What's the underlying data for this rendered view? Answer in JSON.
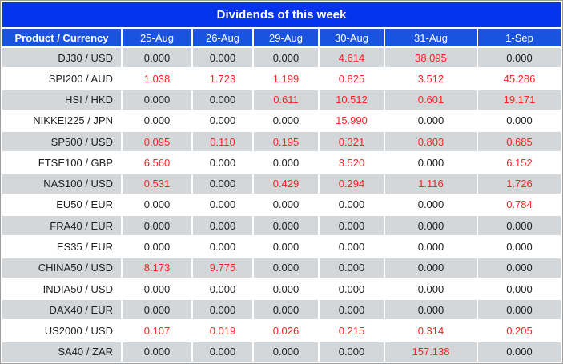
{
  "title": "Dividends of this week",
  "chart_data": {
    "type": "table",
    "columns": [
      "Product / Currency",
      "25-Aug",
      "26-Aug",
      "29-Aug",
      "30-Aug",
      "31-Aug",
      "1-Sep"
    ],
    "rows": [
      {
        "product": "DJ30 / USD",
        "values": [
          "0.000",
          "0.000",
          "0.000",
          "4.614",
          "38.095",
          "0.000"
        ]
      },
      {
        "product": "SPI200 / AUD",
        "values": [
          "1.038",
          "1.723",
          "1.199",
          "0.825",
          "3.512",
          "45.286"
        ]
      },
      {
        "product": "HSI / HKD",
        "values": [
          "0.000",
          "0.000",
          "0.611",
          "10.512",
          "0.601",
          "19.171"
        ]
      },
      {
        "product": "NIKKEI225 / JPN",
        "values": [
          "0.000",
          "0.000",
          "0.000",
          "15.990",
          "0.000",
          "0.000"
        ]
      },
      {
        "product": "SP500 / USD",
        "values": [
          "0.095",
          "0.110",
          "0.195",
          "0.321",
          "0.803",
          "0.685"
        ]
      },
      {
        "product": "FTSE100 / GBP",
        "values": [
          "6.560",
          "0.000",
          "0.000",
          "3.520",
          "0.000",
          "6.152"
        ]
      },
      {
        "product": "NAS100 / USD",
        "values": [
          "0.531",
          "0.000",
          "0.429",
          "0.294",
          "1.116",
          "1.726"
        ]
      },
      {
        "product": "EU50 / EUR",
        "values": [
          "0.000",
          "0.000",
          "0.000",
          "0.000",
          "0.000",
          "0.784"
        ]
      },
      {
        "product": "FRA40 / EUR",
        "values": [
          "0.000",
          "0.000",
          "0.000",
          "0.000",
          "0.000",
          "0.000"
        ]
      },
      {
        "product": "ES35 / EUR",
        "values": [
          "0.000",
          "0.000",
          "0.000",
          "0.000",
          "0.000",
          "0.000"
        ]
      },
      {
        "product": "CHINA50 / USD",
        "values": [
          "8.173",
          "9.775",
          "0.000",
          "0.000",
          "0.000",
          "0.000"
        ]
      },
      {
        "product": "INDIA50 / USD",
        "values": [
          "0.000",
          "0.000",
          "0.000",
          "0.000",
          "0.000",
          "0.000"
        ]
      },
      {
        "product": "DAX40 / EUR",
        "values": [
          "0.000",
          "0.000",
          "0.000",
          "0.000",
          "0.000",
          "0.000"
        ]
      },
      {
        "product": "US2000 / USD",
        "values": [
          "0.107",
          "0.019",
          "0.026",
          "0.215",
          "0.314",
          "0.205"
        ]
      },
      {
        "product": "SA40 / ZAR",
        "values": [
          "0.000",
          "0.000",
          "0.000",
          "0.000",
          "157.138",
          "0.000"
        ]
      }
    ]
  },
  "colors": {
    "title_bar_bg": "#0435ec",
    "header_row_bg": "#1a53e0",
    "stripe_row_bg": "#d4d7d9",
    "zero_value_text": "#202020",
    "dividend_value_text": "#ff2222"
  }
}
